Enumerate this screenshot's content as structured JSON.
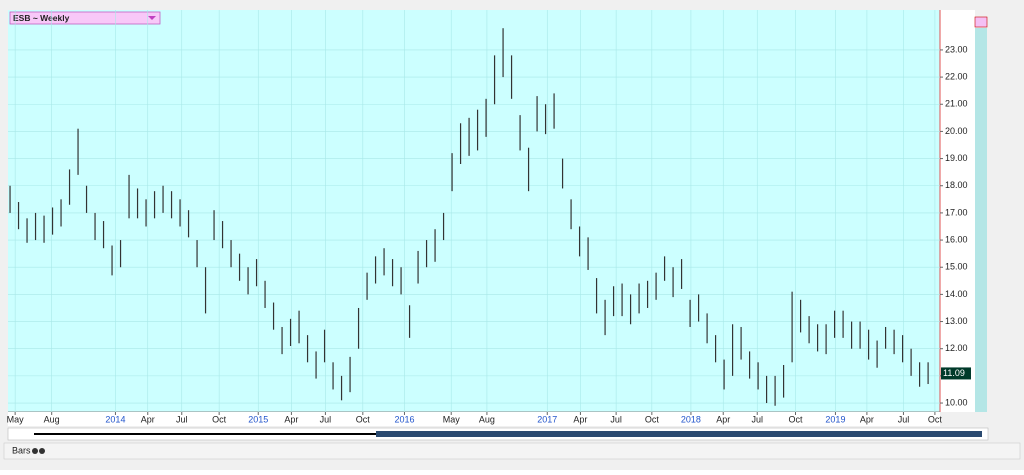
{
  "chart_data": {
    "type": "hlc-bars",
    "title": "ESB ~ Weekly",
    "color": "#333333",
    "background": "#ccffff",
    "grid": true,
    "xlim": [
      -0.24,
      109.4
    ],
    "ylim": [
      9.67,
      24.47
    ],
    "xticks": [
      {
        "value": 0.6,
        "label": "May"
      },
      {
        "value": 4.9,
        "label": "Aug"
      },
      {
        "value": 12.4,
        "label": "2014"
      },
      {
        "value": 16.2,
        "label": "Apr"
      },
      {
        "value": 20.2,
        "label": "Jul"
      },
      {
        "value": 24.6,
        "label": "Oct"
      },
      {
        "value": 29.2,
        "label": "2015"
      },
      {
        "value": 33.1,
        "label": "Apr"
      },
      {
        "value": 37.1,
        "label": "Jul"
      },
      {
        "value": 41.5,
        "label": "Oct"
      },
      {
        "value": 46.4,
        "label": "2016"
      },
      {
        "value": 51.9,
        "label": "May"
      },
      {
        "value": 56.1,
        "label": "Aug"
      },
      {
        "value": 63.2,
        "label": "2017"
      },
      {
        "value": 67.1,
        "label": "Apr"
      },
      {
        "value": 71.3,
        "label": "Jul"
      },
      {
        "value": 75.5,
        "label": "Oct"
      },
      {
        "value": 80.1,
        "label": "2018"
      },
      {
        "value": 83.9,
        "label": "Apr"
      },
      {
        "value": 87.9,
        "label": "Jul"
      },
      {
        "value": 92.4,
        "label": "Oct"
      },
      {
        "value": 97.1,
        "label": "2019"
      },
      {
        "value": 100.8,
        "label": "Apr"
      },
      {
        "value": 105.1,
        "label": "Jul"
      },
      {
        "value": 108.8,
        "label": "Oct"
      }
    ],
    "yticks": [
      {
        "value": 10,
        "label": "10.00"
      },
      {
        "value": 11,
        "label": "11.00"
      },
      {
        "value": 12,
        "label": "12.00"
      },
      {
        "value": 13,
        "label": "13.00"
      },
      {
        "value": 14,
        "label": "14.00"
      },
      {
        "value": 15,
        "label": "15.00"
      },
      {
        "value": 16,
        "label": "16.00"
      },
      {
        "value": 17,
        "label": "17.00"
      },
      {
        "value": 18,
        "label": "18.00"
      },
      {
        "value": 19,
        "label": "19.00"
      },
      {
        "value": 20,
        "label": "20.00"
      },
      {
        "value": 21,
        "label": "21.00"
      },
      {
        "value": 22,
        "label": "22.00"
      },
      {
        "value": 23,
        "label": "23.00"
      }
    ],
    "high": [
      18.0,
      17.4,
      16.8,
      17.0,
      16.9,
      17.2,
      17.5,
      18.6,
      20.1,
      18.0,
      17.0,
      16.7,
      15.8,
      16.0,
      18.4,
      17.9,
      17.5,
      17.8,
      18.0,
      17.8,
      17.5,
      17.1,
      16.0,
      15.0,
      17.1,
      16.7,
      16.0,
      15.5,
      15.0,
      15.3,
      14.5,
      13.7,
      12.8,
      13.1,
      13.4,
      12.5,
      11.9,
      12.7,
      11.5,
      11.0,
      11.7,
      13.5,
      14.8,
      15.4,
      15.7,
      15.3,
      15.0,
      13.6,
      15.6,
      16.0,
      16.4,
      17.0,
      19.2,
      20.3,
      20.5,
      20.8,
      21.2,
      22.8,
      23.8,
      22.8,
      20.6,
      19.4,
      21.3,
      21.0,
      21.4,
      19.0,
      17.5,
      16.5,
      16.1,
      14.6,
      13.8,
      14.3,
      14.4,
      14.0,
      14.4,
      14.5,
      14.8,
      15.4,
      15.0,
      15.3,
      13.8,
      14.0,
      13.3,
      12.5,
      11.6,
      12.9,
      12.8,
      11.9,
      11.5,
      11.0,
      11.0,
      11.4,
      14.1,
      13.8,
      13.2,
      12.9,
      12.9,
      13.4,
      13.4,
      13.0,
      13.0,
      12.7,
      12.3,
      12.8,
      12.7,
      12.5,
      12.0,
      11.5,
      11.5
    ],
    "low": [
      17.0,
      16.4,
      15.9,
      16.0,
      15.9,
      16.2,
      16.5,
      17.3,
      18.4,
      17.0,
      16.0,
      15.7,
      14.7,
      15.0,
      16.8,
      16.8,
      16.5,
      16.8,
      17.0,
      16.8,
      16.5,
      16.1,
      15.0,
      13.3,
      16.0,
      15.7,
      15.0,
      14.5,
      14.0,
      14.3,
      13.5,
      12.7,
      11.8,
      12.1,
      12.2,
      11.5,
      10.9,
      11.5,
      10.5,
      10.1,
      10.4,
      12.0,
      13.8,
      14.4,
      14.7,
      14.3,
      14.0,
      12.4,
      14.4,
      15.0,
      15.2,
      16.0,
      17.8,
      18.8,
      19.1,
      19.3,
      19.8,
      21.0,
      22.0,
      21.2,
      19.3,
      17.8,
      20.0,
      19.9,
      20.1,
      17.9,
      16.4,
      15.4,
      14.9,
      13.3,
      12.5,
      13.2,
      13.2,
      12.9,
      13.3,
      13.5,
      13.8,
      14.5,
      13.9,
      14.2,
      12.8,
      13.0,
      12.2,
      11.5,
      10.5,
      11.0,
      11.6,
      10.9,
      10.5,
      10.0,
      9.9,
      10.2,
      11.5,
      12.6,
      12.2,
      11.9,
      11.8,
      12.4,
      12.4,
      12.0,
      12.0,
      11.6,
      11.3,
      12.0,
      11.8,
      11.5,
      11.0,
      10.6,
      10.7
    ],
    "last_price": {
      "value": 11.09,
      "label": "11.09"
    },
    "footer_label": "Bars"
  }
}
